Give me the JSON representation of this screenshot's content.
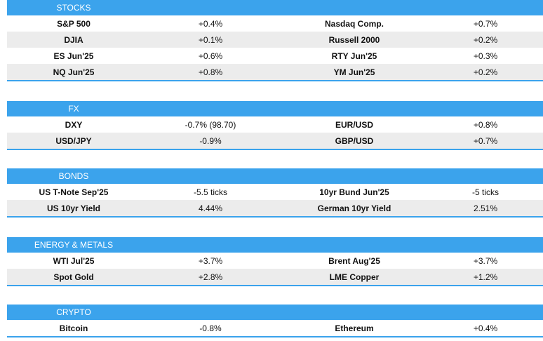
{
  "sections": [
    {
      "title": "STOCKS",
      "rows": [
        {
          "a_name": "S&P 500",
          "a_value": "+0.4%",
          "b_name": "Nasdaq Comp.",
          "b_value": "+0.7%"
        },
        {
          "a_name": "DJIA",
          "a_value": "+0.1%",
          "b_name": "Russell 2000",
          "b_value": "+0.2%"
        },
        {
          "a_name": "ES Jun'25",
          "a_value": "+0.6%",
          "b_name": "RTY Jun'25",
          "b_value": "+0.3%"
        },
        {
          "a_name": "NQ Jun'25",
          "a_value": "+0.8%",
          "b_name": "YM Jun'25",
          "b_value": "+0.2%"
        }
      ]
    },
    {
      "title": "FX",
      "rows": [
        {
          "a_name": "DXY",
          "a_value": "-0.7% (98.70)",
          "b_name": "EUR/USD",
          "b_value": "+0.8%"
        },
        {
          "a_name": "USD/JPY",
          "a_value": "-0.9%",
          "b_name": "GBP/USD",
          "b_value": "+0.7%"
        }
      ]
    },
    {
      "title": "BONDS",
      "rows": [
        {
          "a_name": "US T-Note Sep'25",
          "a_value": "-5.5 ticks",
          "b_name": "10yr Bund Jun'25",
          "b_value": "-5 ticks"
        },
        {
          "a_name": "US 10yr Yield",
          "a_value": "4.44%",
          "b_name": "German 10yr Yield",
          "b_value": "2.51%"
        }
      ]
    },
    {
      "title": "ENERGY & METALS",
      "rows": [
        {
          "a_name": "WTI Jul'25",
          "a_value": "+3.7%",
          "b_name": "Brent Aug'25",
          "b_value": "+3.7%"
        },
        {
          "a_name": "Spot Gold",
          "a_value": "+2.8%",
          "b_name": "LME Copper",
          "b_value": "+1.2%"
        }
      ]
    },
    {
      "title": "CRYPTO",
      "rows": [
        {
          "a_name": "Bitcoin",
          "a_value": "-0.8%",
          "b_name": "Ethereum",
          "b_value": "+0.4%"
        }
      ]
    }
  ],
  "colors": {
    "header": "#3ba3ec",
    "row_alt": "#ececec"
  }
}
